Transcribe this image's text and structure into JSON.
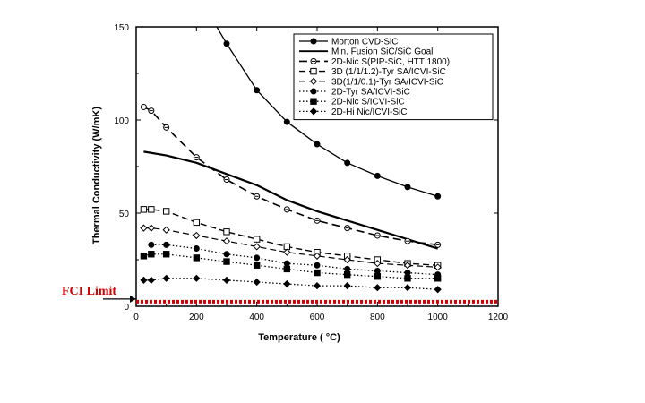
{
  "chart_data": {
    "type": "line",
    "xlabel": "Temperature (    °C)",
    "ylabel": "Thermal Conductivity (W/mK)",
    "xlim": [
      0,
      1200
    ],
    "ylim": [
      0,
      150
    ],
    "xticks": [
      0,
      200,
      400,
      600,
      800,
      1000,
      1200
    ],
    "yticks": [
      0,
      50,
      100,
      150
    ],
    "grid": false,
    "legend_position": "top-right",
    "series": [
      {
        "name": "Morton CVD-SiC",
        "style": "solid-filled-circle",
        "x": [
          300,
          400,
          500,
          600,
          700,
          800,
          900,
          1000
        ],
        "y": [
          141,
          116,
          99,
          87,
          77,
          70,
          64,
          59
        ]
      },
      {
        "name": "Min. Fusion SiC/SiC Goal",
        "style": "solid-thick",
        "x": [
          25,
          100,
          200,
          300,
          400,
          500,
          600,
          700,
          800,
          900,
          1000
        ],
        "y": [
          83,
          81,
          77,
          71,
          65,
          57,
          51,
          46,
          41,
          36,
          31
        ]
      },
      {
        "name": "2D-Nic S(PIP-SiC, HTT 1800)",
        "style": "long-dash-open-circle-minus",
        "x": [
          25,
          50,
          100,
          200,
          300,
          400,
          500,
          600,
          700,
          800,
          900,
          1000
        ],
        "y": [
          107,
          105,
          96,
          80,
          68,
          59,
          52,
          46,
          42,
          38,
          35,
          33
        ]
      },
      {
        "name": "3D (1/1/1.2)-Tyr SA/ICVI-SiC",
        "style": "dash-open-square",
        "x": [
          25,
          50,
          100,
          200,
          300,
          400,
          500,
          600,
          700,
          800,
          900,
          1000
        ],
        "y": [
          52,
          52,
          51,
          45,
          40,
          36,
          32,
          29,
          27,
          25,
          23,
          22
        ]
      },
      {
        "name": "3D(1/1/0.1)-Tyr SA/ICVI-SiC",
        "style": "dash-open-diamond",
        "x": [
          25,
          50,
          100,
          200,
          300,
          400,
          500,
          600,
          700,
          800,
          900,
          1000
        ],
        "y": [
          42,
          42,
          41,
          38,
          35,
          32,
          29,
          27,
          25,
          23,
          22,
          21
        ]
      },
      {
        "name": "2D-Tyr SA/ICVI-SiC",
        "style": "dotted-filled-circle",
        "x": [
          50,
          100,
          200,
          300,
          400,
          500,
          600,
          700,
          800,
          900,
          1000
        ],
        "y": [
          33,
          33,
          31,
          28,
          26,
          23,
          22,
          20,
          19,
          18,
          17
        ]
      },
      {
        "name": "2D-Nic S/ICVI-SiC",
        "style": "dotted-filled-square",
        "x": [
          25,
          50,
          100,
          200,
          300,
          400,
          500,
          600,
          700,
          800,
          900,
          1000
        ],
        "y": [
          27,
          28,
          28,
          26,
          24,
          22,
          20,
          18,
          17,
          16,
          15,
          15
        ]
      },
      {
        "name": "2D-Hi Nic/ICVI-SiC",
        "style": "dotted-filled-diamond",
        "x": [
          25,
          50,
          100,
          200,
          300,
          400,
          500,
          600,
          700,
          800,
          900,
          1000
        ],
        "y": [
          14,
          14,
          15,
          15,
          14,
          13,
          12,
          11,
          11,
          10,
          10,
          9
        ]
      }
    ],
    "annotations": [
      {
        "text": "FCI Limit",
        "y": 2,
        "color": "#d40000",
        "style": "dotted-line-with-arrow"
      }
    ]
  },
  "colors": {
    "series": "#000000",
    "fci_limit": "#d40000"
  }
}
